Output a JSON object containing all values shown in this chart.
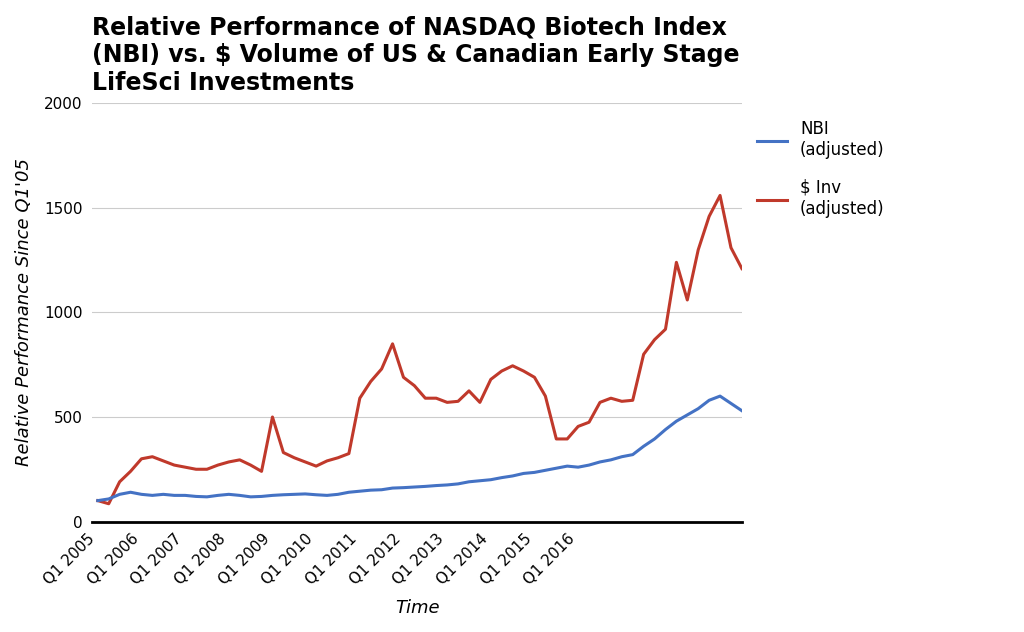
{
  "title": "Relative Performance of NASDAQ Biotech Index\n(NBI) vs. $ Volume of US & Canadian Early Stage\nLifeSci Investments",
  "xlabel": "Time",
  "ylabel": "Relative Performance Since Q1'05",
  "nbi_color": "#4472C4",
  "inv_color": "#C0392B",
  "legend_nbi": "NBI\n(adjusted)",
  "legend_inv": "$ Inv\n(adjusted)",
  "background_color": "#ffffff",
  "ylim": [
    0,
    2000
  ],
  "yticks": [
    0,
    500,
    1000,
    1500,
    2000
  ],
  "x_labels": [
    "Q1 2005",
    "Q1 2006",
    "Q1 2007",
    "Q1 2008",
    "Q1 2009",
    "Q1 2010",
    "Q1 2011",
    "Q1 2012",
    "Q1 2013",
    "Q1 2014",
    "Q1 2015",
    "Q1 2016"
  ],
  "nbi_values": [
    100,
    108,
    130,
    140,
    130,
    125,
    130,
    125,
    125,
    120,
    118,
    125,
    130,
    125,
    118,
    120,
    125,
    128,
    130,
    132,
    128,
    125,
    130,
    140,
    145,
    150,
    152,
    160,
    162,
    165,
    168,
    172,
    175,
    180,
    190,
    195,
    200,
    210,
    218,
    230,
    235,
    245,
    255,
    265,
    260,
    270,
    285,
    295,
    310,
    320,
    360,
    395,
    440,
    480,
    510,
    540,
    580,
    600,
    565,
    530
  ],
  "inv_values": [
    100,
    85,
    190,
    240,
    300,
    310,
    290,
    270,
    260,
    250,
    250,
    270,
    285,
    295,
    270,
    240,
    500,
    330,
    305,
    285,
    265,
    290,
    305,
    325,
    590,
    670,
    730,
    850,
    690,
    650,
    590,
    590,
    570,
    575,
    625,
    570,
    680,
    720,
    745,
    720,
    690,
    600,
    395,
    395,
    455,
    475,
    570,
    590,
    575,
    580,
    800,
    870,
    920,
    1240,
    1060,
    1300,
    1460,
    1560,
    1310,
    1210
  ],
  "n_points": 60,
  "grid_color": "#cccccc",
  "line_width": 2.2,
  "title_fontsize": 17,
  "axis_label_fontsize": 13,
  "tick_fontsize": 11,
  "legend_fontsize": 12
}
